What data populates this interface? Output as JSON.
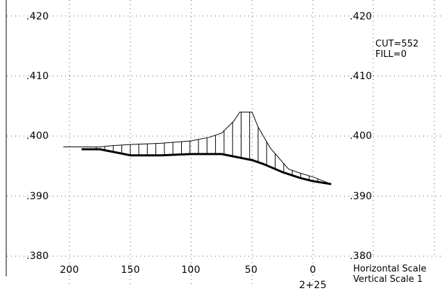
{
  "section": {
    "station": "2+25",
    "cut_label": "CUT=552",
    "fill_label": "FILL=0",
    "h_scale_label": "Horizontal Scale",
    "v_scale_label": "Vertical Scale 1",
    "x_ticks": [
      "200",
      "150",
      "100",
      "50",
      "0"
    ],
    "y_ticks_left": [
      ".420",
      ".410",
      ".400",
      ".390",
      ".380"
    ],
    "y_ticks_right": [
      ".420",
      ".410",
      ".400",
      ".390",
      ".380"
    ]
  },
  "chart_data": {
    "type": "line",
    "xlim": [
      200,
      0
    ],
    "ylim": [
      380,
      420
    ],
    "x_ticks": [
      200,
      150,
      100,
      50,
      0
    ],
    "y_ticks": [
      380,
      390,
      400,
      410,
      420
    ],
    "grid": true,
    "series": [
      {
        "role": "existing-ground",
        "points": [
          [
            205,
            398.2
          ],
          [
            175,
            398.2
          ],
          [
            165,
            398.4
          ],
          [
            150,
            398.6
          ],
          [
            125,
            398.8
          ],
          [
            100,
            399.2
          ],
          [
            85,
            399.8
          ],
          [
            75,
            400.5
          ],
          [
            65,
            402.5
          ],
          [
            60,
            404.0
          ],
          [
            50,
            404.0
          ],
          [
            45,
            401.5
          ],
          [
            35,
            398.0
          ],
          [
            20,
            394.5
          ],
          [
            10,
            393.8
          ],
          [
            0,
            393.2
          ],
          [
            -15,
            392.0
          ]
        ]
      },
      {
        "role": "design-surface",
        "points": [
          [
            190,
            397.8
          ],
          [
            175,
            397.8
          ],
          [
            155,
            397.0
          ],
          [
            150,
            396.8
          ],
          [
            125,
            396.8
          ],
          [
            100,
            397.0
          ],
          [
            75,
            397.0
          ],
          [
            50,
            396.0
          ],
          [
            40,
            395.3
          ],
          [
            25,
            394.0
          ],
          [
            10,
            393.0
          ],
          [
            0,
            392.5
          ],
          [
            -15,
            392.0
          ]
        ]
      }
    ]
  }
}
